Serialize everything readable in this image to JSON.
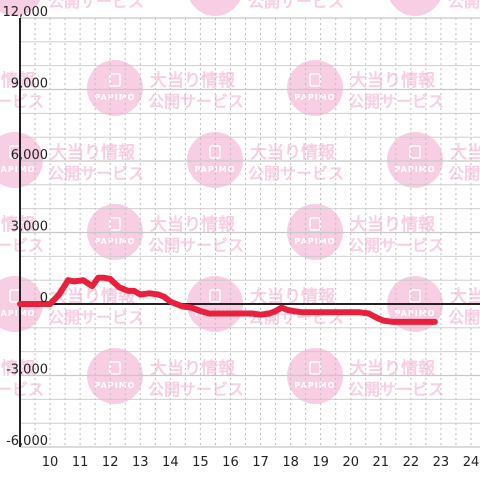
{
  "colors": {
    "series": "#e8203c",
    "grid_major": "#c8c8c8",
    "grid_minor": "#bdbdbd",
    "axis": "#222222",
    "watermark": "#f4a7cf"
  },
  "watermark": {
    "logo_text": "PAPIMO",
    "line1": "大当り情報",
    "line2": "公開サービス"
  },
  "chart_data": {
    "type": "line",
    "title": "",
    "xlabel": "",
    "ylabel": "",
    "xlim": [
      9,
      24.3
    ],
    "ylim": [
      -6000,
      12000
    ],
    "x_ticks": [
      10,
      11,
      12,
      13,
      14,
      15,
      16,
      17,
      18,
      19,
      20,
      21,
      22,
      23,
      24
    ],
    "x_tick_labels": [
      "10",
      "11",
      "12",
      "13",
      "14",
      "15",
      "16",
      "17",
      "18",
      "19",
      "20",
      "21",
      "22",
      "23",
      "24"
    ],
    "y_ticks": [
      -6000,
      -3000,
      0,
      3000,
      6000,
      9000,
      12000
    ],
    "y_tick_labels": [
      "-6,000",
      "-3,000",
      "0",
      "3,000",
      "6,000",
      "9,000",
      "12,000"
    ],
    "grid": true,
    "series": [
      {
        "x": [
          9.0,
          10.0,
          10.3,
          10.6,
          10.8,
          11.1,
          11.4,
          11.6,
          11.8,
          12.0,
          12.3,
          12.6,
          12.8,
          13.0,
          13.3,
          13.6,
          13.8,
          14.0,
          14.2,
          14.4,
          14.7,
          15.0,
          15.3,
          15.7,
          16.0,
          16.4,
          16.7,
          17.0,
          17.3,
          17.5,
          17.7,
          17.9,
          18.1,
          18.4,
          18.8,
          19.2,
          19.6,
          20.0,
          20.3,
          20.6,
          20.9,
          21.1,
          21.4,
          21.7,
          22.0,
          22.3,
          22.6,
          22.8
        ],
        "y": [
          0,
          0,
          400,
          1000,
          950,
          1000,
          750,
          1100,
          1100,
          1050,
          700,
          550,
          550,
          400,
          450,
          400,
          300,
          100,
          0,
          -100,
          -150,
          -300,
          -400,
          -400,
          -400,
          -400,
          -400,
          -450,
          -400,
          -300,
          -150,
          -250,
          -300,
          -350,
          -350,
          -350,
          -350,
          -350,
          -350,
          -400,
          -600,
          -700,
          -750,
          -750,
          -750,
          -750,
          -750,
          -750
        ]
      }
    ]
  }
}
